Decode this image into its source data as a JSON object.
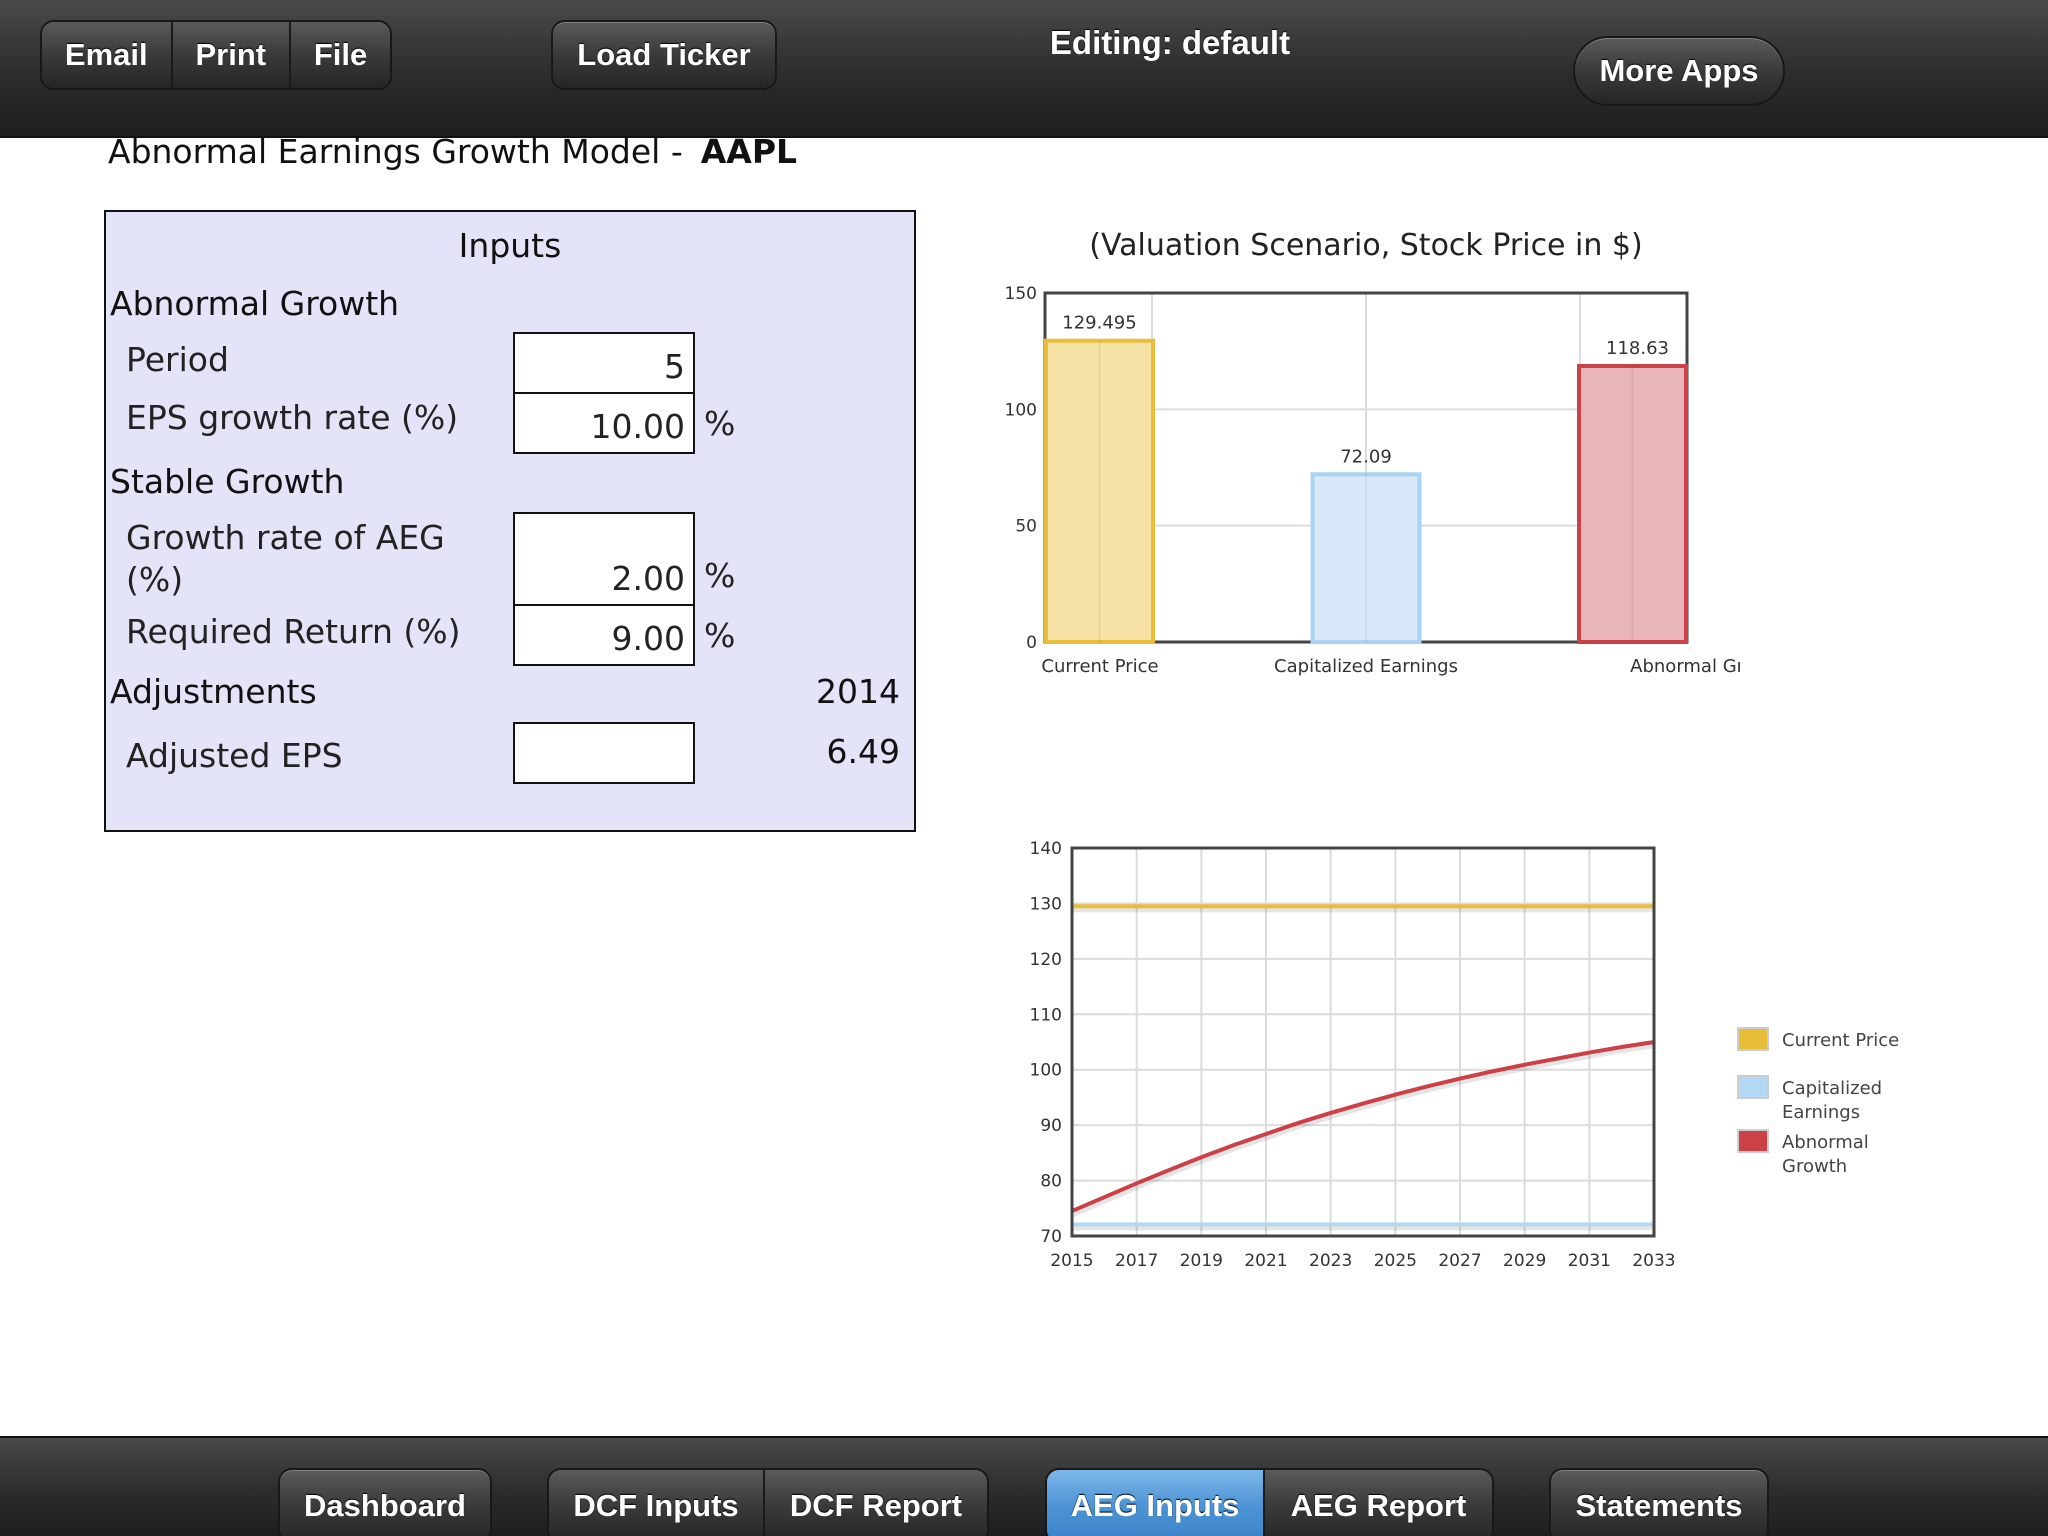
{
  "toolbar": {
    "email": "Email",
    "print": "Print",
    "file": "File",
    "load_ticker": "Load Ticker",
    "editing": "Editing: default",
    "more_apps": "More Apps"
  },
  "page": {
    "title": "Abnormal Earnings Growth Model -",
    "ticker": "AAPL"
  },
  "inputs": {
    "title": "Inputs",
    "abnormal_growth": {
      "heading": "Abnormal Growth",
      "period_label": "Period",
      "period_value": "5",
      "eps_growth_label": "EPS growth rate (%)",
      "eps_growth_value": "10.00",
      "eps_growth_unit": "%"
    },
    "stable_growth": {
      "heading": "Stable Growth",
      "aeg_rate_label_line1": "Growth rate of AEG",
      "aeg_rate_label_line2": "(%)",
      "aeg_rate_value": "2.00",
      "aeg_rate_unit": "%",
      "required_return_label": "Required Return (%)",
      "required_return_value": "9.00",
      "required_return_unit": "%"
    },
    "adjustments": {
      "heading": "Adjustments",
      "year": "2014",
      "adjusted_eps_label": "Adjusted  EPS",
      "adjusted_eps_input": "",
      "adjusted_eps_value": "6.49"
    }
  },
  "chart_data": [
    {
      "type": "bar",
      "title": "(Valuation Scenario, Stock Price in $)",
      "categories": [
        "Current Price",
        "Capitalized Earnings",
        "Abnormal Growth"
      ],
      "values": [
        129.495,
        72.09,
        118.63
      ],
      "value_labels": [
        "129.495",
        "72.09",
        "118.63"
      ],
      "colors": [
        "#f6e2a6",
        "#d8e9f9",
        "#e8b6b8"
      ],
      "border_colors": [
        "#e7bd39",
        "#a9d2f3",
        "#cc4145"
      ],
      "ylim": [
        0,
        150
      ],
      "yticks": [
        0,
        50,
        100,
        150
      ],
      "grid": true
    },
    {
      "type": "line",
      "x": [
        2015,
        2016,
        2017,
        2018,
        2019,
        2020,
        2021,
        2022,
        2023,
        2024,
        2025,
        2026,
        2027,
        2028,
        2029,
        2030,
        2031,
        2032,
        2033
      ],
      "xticks": [
        "2015",
        "2017",
        "2019",
        "2021",
        "2023",
        "2025",
        "2027",
        "2029",
        "2031",
        "2033"
      ],
      "ylim": [
        70,
        140
      ],
      "yticks": [
        70,
        80,
        90,
        100,
        110,
        120,
        130,
        140
      ],
      "grid": true,
      "legend_position": "right",
      "series": [
        {
          "name": "Current Price",
          "color": "#e8bd3a",
          "values": [
            129.5,
            129.5,
            129.5,
            129.5,
            129.5,
            129.5,
            129.5,
            129.5,
            129.5,
            129.5,
            129.5,
            129.5,
            129.5,
            129.5,
            129.5,
            129.5,
            129.5,
            129.5,
            129.5
          ]
        },
        {
          "name": "Capitalized Earnings",
          "color": "#b3d8f5",
          "values": [
            72.1,
            72.1,
            72.1,
            72.1,
            72.1,
            72.1,
            72.1,
            72.1,
            72.1,
            72.1,
            72.1,
            72.1,
            72.1,
            72.1,
            72.1,
            72.1,
            72.1,
            72.1,
            72.1
          ]
        },
        {
          "name": "Abnormal Growth",
          "color": "#cc4145",
          "values": [
            74.5,
            77.0,
            79.5,
            81.9,
            84.2,
            86.4,
            88.4,
            90.4,
            92.2,
            93.9,
            95.5,
            97.0,
            98.4,
            99.7,
            100.9,
            102.0,
            103.1,
            104.1,
            105.0
          ]
        }
      ],
      "legend_labels": [
        {
          "line1": "Current Price",
          "line2": ""
        },
        {
          "line1": "Capitalized",
          "line2": "Earnings"
        },
        {
          "line1": "Abnormal",
          "line2": "Growth"
        }
      ]
    }
  ],
  "bottom_nav": {
    "dashboard": "Dashboard",
    "dcf_inputs": "DCF Inputs",
    "dcf_report": "DCF Report",
    "aeg_inputs": "AEG Inputs",
    "aeg_report": "AEG Report",
    "statements": "Statements"
  }
}
